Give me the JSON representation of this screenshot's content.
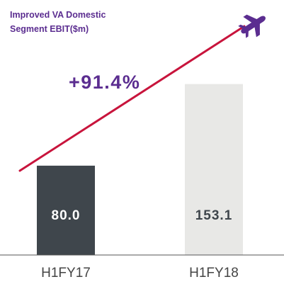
{
  "chart_data": {
    "type": "bar",
    "title": "Improved VA Domestic Segment EBIT($m)",
    "title_lines": [
      "Improved VA Domestic",
      "Segment EBIT($m)"
    ],
    "categories": [
      "H1FY17",
      "H1FY18"
    ],
    "values": [
      80.0,
      153.1
    ],
    "value_labels": [
      "80.0",
      "153.1"
    ],
    "ylim": [
      0,
      170
    ],
    "grid": false,
    "annotation": "+91.4%",
    "colors": {
      "bar_1": "#3f464c",
      "bar_2": "#e8e8e6",
      "label_on_dark": "#ffffff",
      "label_on_light": "#3f464c",
      "title": "#5b2d90",
      "annotation": "#5b2d90",
      "trend_arrow": "#c8143c",
      "plane_icon": "#5b2d90",
      "axis_line": "#555555",
      "tick_label": "#444444"
    }
  },
  "icons": {
    "plane": "airplane-icon"
  }
}
